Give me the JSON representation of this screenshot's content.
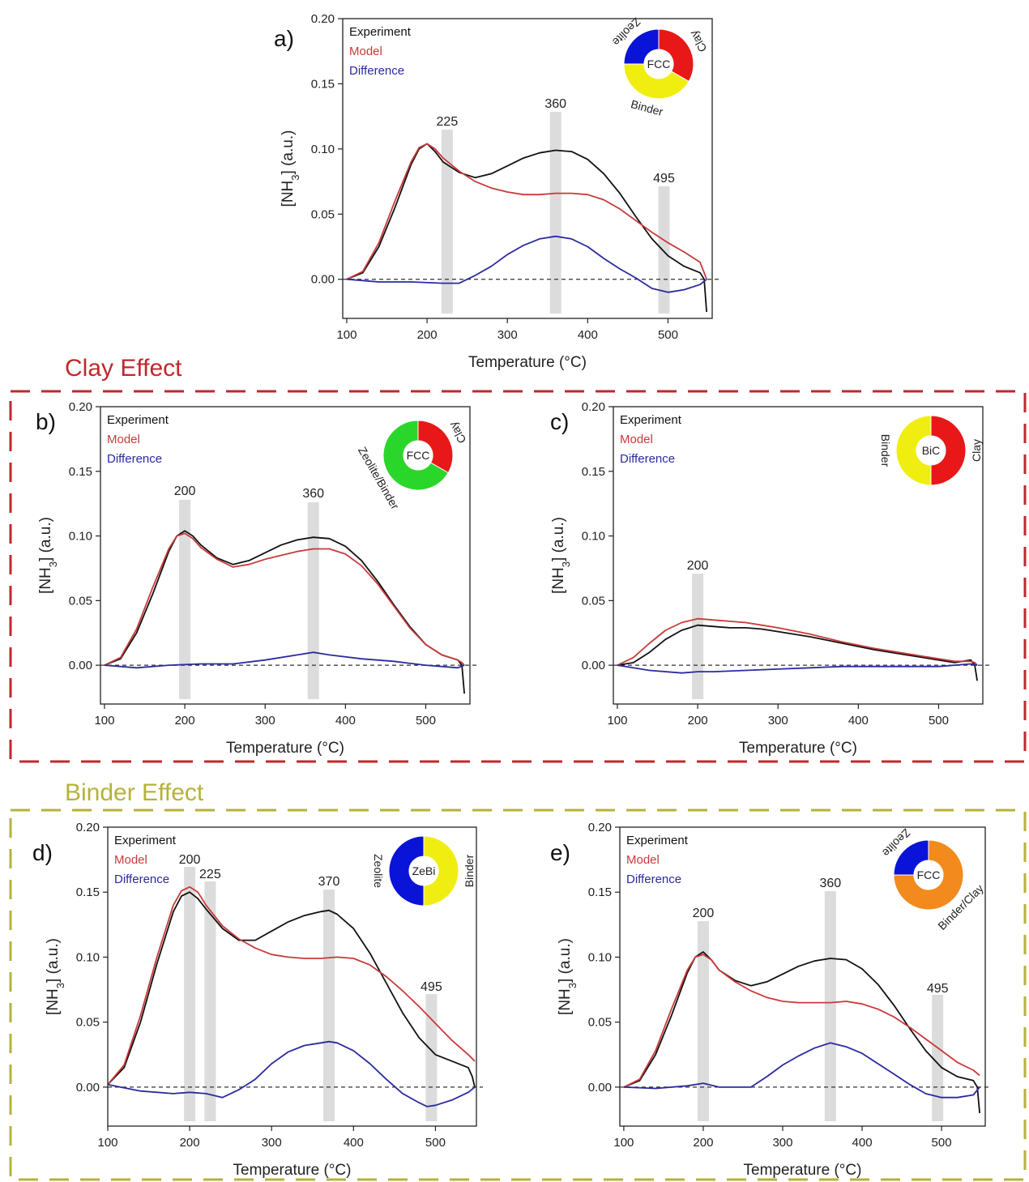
{
  "sections": [
    {
      "label": "Clay Effect",
      "color": "#c0282d"
    },
    {
      "label": "Binder Effect",
      "color": "#b5b23a"
    }
  ],
  "colors": {
    "experiment": "#111111",
    "model": "#c83a3a",
    "difference": "#2a2aa0",
    "peak_band": "#dcdcdc",
    "zeolite": "#0a14d8",
    "clay": "#e81818",
    "binder": "#f0ee10",
    "zeolite_binder": "#2bd62b",
    "binder_clay": "#f28a1e"
  },
  "chart_data": [
    {
      "panel": "a)",
      "type": "line",
      "xlabel": "Temperature (°C)",
      "ylabel": "[NH3] (a.u.)",
      "xlim": [
        95,
        555
      ],
      "ylim": [
        -0.03,
        0.2
      ],
      "xticks": [
        100,
        200,
        300,
        400,
        500
      ],
      "yticks": [
        "0.00",
        "0.05",
        "0.10",
        "0.15",
        "0.20"
      ],
      "legend": [
        "Experiment",
        "Model",
        "Difference"
      ],
      "legend_position": "top-left",
      "peaks": [
        "225",
        "360",
        "495"
      ],
      "donut": {
        "center": "FCC",
        "segments": [
          {
            "label": "Zeolite",
            "color": "zeolite",
            "from": 270,
            "to": 0
          },
          {
            "label": "Clay",
            "color": "clay",
            "from": 0,
            "to": 120
          },
          {
            "label": "Binder",
            "color": "binder",
            "from": 120,
            "to": 270
          }
        ]
      },
      "series": [
        {
          "name": "Experiment",
          "x": [
            100,
            120,
            140,
            160,
            180,
            190,
            200,
            210,
            220,
            240,
            260,
            280,
            300,
            320,
            340,
            360,
            380,
            400,
            420,
            440,
            460,
            480,
            500,
            520,
            540,
            545,
            548
          ],
          "y": [
            0,
            0.005,
            0.025,
            0.055,
            0.088,
            0.1,
            0.104,
            0.098,
            0.09,
            0.082,
            0.078,
            0.081,
            0.087,
            0.093,
            0.097,
            0.099,
            0.098,
            0.092,
            0.081,
            0.066,
            0.048,
            0.031,
            0.018,
            0.01,
            0.005,
            0,
            -0.025
          ]
        },
        {
          "name": "Model",
          "x": [
            100,
            120,
            140,
            160,
            180,
            190,
            200,
            210,
            220,
            240,
            260,
            280,
            300,
            320,
            340,
            360,
            380,
            400,
            420,
            440,
            460,
            480,
            500,
            520,
            540,
            545,
            548
          ],
          "y": [
            0,
            0.006,
            0.028,
            0.06,
            0.09,
            0.101,
            0.104,
            0.1,
            0.093,
            0.083,
            0.075,
            0.07,
            0.067,
            0.065,
            0.065,
            0.066,
            0.066,
            0.065,
            0.061,
            0.054,
            0.045,
            0.036,
            0.028,
            0.021,
            0.013,
            0.005,
            0
          ]
        },
        {
          "name": "Difference",
          "x": [
            100,
            140,
            180,
            220,
            240,
            260,
            280,
            300,
            320,
            340,
            360,
            380,
            400,
            420,
            440,
            460,
            480,
            500,
            520,
            540,
            548
          ],
          "y": [
            0,
            -0.002,
            -0.002,
            -0.003,
            -0.003,
            0.003,
            0.01,
            0.019,
            0.026,
            0.031,
            0.033,
            0.031,
            0.025,
            0.016,
            0.008,
            0.001,
            -0.007,
            -0.01,
            -0.008,
            -0.004,
            0
          ]
        }
      ]
    },
    {
      "panel": "b)",
      "type": "line",
      "xlabel": "Temperature (°C)",
      "ylabel": "[NH3] (a.u.)",
      "xlim": [
        95,
        555
      ],
      "ylim": [
        -0.03,
        0.2
      ],
      "xticks": [
        100,
        200,
        300,
        400,
        500
      ],
      "yticks": [
        "0.00",
        "0.05",
        "0.10",
        "0.15",
        "0.20"
      ],
      "legend": [
        "Experiment",
        "Model",
        "Difference"
      ],
      "legend_position": "top-left",
      "peaks": [
        "200",
        "360"
      ],
      "donut": {
        "center": "FCC",
        "segments": [
          {
            "label": "Zeolite/Binder",
            "color": "zeolite_binder",
            "from": 120,
            "to": 360
          },
          {
            "label": "Clay",
            "color": "clay",
            "from": 0,
            "to": 120
          }
        ]
      },
      "series": [
        {
          "name": "Experiment",
          "x": [
            100,
            120,
            140,
            160,
            180,
            190,
            200,
            210,
            220,
            240,
            260,
            280,
            300,
            320,
            340,
            360,
            380,
            400,
            420,
            440,
            460,
            480,
            500,
            520,
            540,
            545,
            548
          ],
          "y": [
            0,
            0.005,
            0.025,
            0.055,
            0.088,
            0.1,
            0.104,
            0.1,
            0.093,
            0.083,
            0.078,
            0.081,
            0.087,
            0.093,
            0.097,
            0.099,
            0.098,
            0.092,
            0.081,
            0.065,
            0.047,
            0.03,
            0.016,
            0.008,
            0.004,
            0,
            -0.022
          ]
        },
        {
          "name": "Model",
          "x": [
            100,
            120,
            140,
            160,
            180,
            190,
            200,
            210,
            220,
            240,
            260,
            280,
            300,
            320,
            340,
            360,
            380,
            400,
            420,
            440,
            460,
            480,
            500,
            520,
            540,
            545,
            548
          ],
          "y": [
            0,
            0.006,
            0.028,
            0.06,
            0.09,
            0.1,
            0.102,
            0.098,
            0.091,
            0.082,
            0.076,
            0.078,
            0.082,
            0.085,
            0.088,
            0.09,
            0.09,
            0.086,
            0.077,
            0.063,
            0.046,
            0.029,
            0.016,
            0.008,
            0.004,
            0.002,
            0
          ]
        },
        {
          "name": "Difference",
          "x": [
            100,
            140,
            180,
            220,
            260,
            300,
            340,
            360,
            380,
            420,
            460,
            500,
            540,
            548
          ],
          "y": [
            0,
            -0.002,
            0,
            0.001,
            0.001,
            0.004,
            0.008,
            0.01,
            0.008,
            0.005,
            0.003,
            0,
            -0.002,
            0
          ]
        }
      ]
    },
    {
      "panel": "c)",
      "type": "line",
      "xlabel": "Temperature (°C)",
      "ylabel": "[NH3] (a.u.)",
      "xlim": [
        95,
        555
      ],
      "ylim": [
        -0.03,
        0.2
      ],
      "xticks": [
        100,
        200,
        300,
        400,
        500
      ],
      "yticks": [
        "0.00",
        "0.05",
        "0.10",
        "0.15",
        "0.20"
      ],
      "legend": [
        "Experiment",
        "Model",
        "Difference"
      ],
      "legend_position": "top-left",
      "peaks": [
        "200"
      ],
      "donut": {
        "center": "BiC",
        "segments": [
          {
            "label": "Binder",
            "color": "binder",
            "from": 180,
            "to": 360
          },
          {
            "label": "Clay",
            "color": "clay",
            "from": 0,
            "to": 180
          }
        ]
      },
      "series": [
        {
          "name": "Experiment",
          "x": [
            100,
            120,
            140,
            160,
            180,
            200,
            220,
            240,
            260,
            280,
            300,
            340,
            380,
            420,
            460,
            500,
            520,
            540,
            545,
            548
          ],
          "y": [
            0,
            0.002,
            0.01,
            0.02,
            0.027,
            0.031,
            0.03,
            0.029,
            0.029,
            0.028,
            0.026,
            0.022,
            0.017,
            0.012,
            0.008,
            0.004,
            0.002,
            0.004,
            0,
            -0.012
          ]
        },
        {
          "name": "Model",
          "x": [
            100,
            120,
            140,
            160,
            180,
            200,
            220,
            240,
            260,
            280,
            300,
            340,
            380,
            420,
            460,
            500,
            520,
            540,
            545,
            548
          ],
          "y": [
            0,
            0.006,
            0.017,
            0.027,
            0.033,
            0.036,
            0.035,
            0.034,
            0.033,
            0.031,
            0.029,
            0.024,
            0.018,
            0.013,
            0.009,
            0.005,
            0.003,
            0.003,
            0.002,
            0
          ]
        },
        {
          "name": "Difference",
          "x": [
            100,
            140,
            180,
            200,
            220,
            260,
            300,
            340,
            380,
            420,
            460,
            500,
            540,
            548
          ],
          "y": [
            0,
            -0.004,
            -0.006,
            -0.005,
            -0.005,
            -0.004,
            -0.003,
            -0.002,
            -0.001,
            -0.001,
            -0.001,
            -0.001,
            0.001,
            0
          ]
        }
      ]
    },
    {
      "panel": "d)",
      "type": "line",
      "xlabel": "Temperature (°C)",
      "ylabel": "[NH3] (a.u.)",
      "xlim": [
        100,
        550
      ],
      "ylim": [
        -0.03,
        0.2
      ],
      "xticks": [
        100,
        200,
        300,
        400,
        500
      ],
      "yticks": [
        "0.00",
        "0.05",
        "0.10",
        "0.15",
        "0.20"
      ],
      "legend": [
        "Experiment",
        "Model",
        "Difference"
      ],
      "legend_position": "top-left",
      "peaks": [
        "200",
        "225",
        "370",
        "495"
      ],
      "donut": {
        "center": "ZeBi",
        "segments": [
          {
            "label": "Zeolite",
            "color": "zeolite",
            "from": 180,
            "to": 360
          },
          {
            "label": "Binder",
            "color": "binder",
            "from": 0,
            "to": 180
          }
        ]
      },
      "series": [
        {
          "name": "Experiment",
          "x": [
            100,
            120,
            140,
            160,
            180,
            190,
            200,
            210,
            220,
            240,
            260,
            280,
            300,
            320,
            340,
            360,
            370,
            380,
            400,
            420,
            440,
            460,
            480,
            500,
            520,
            540,
            545,
            548
          ],
          "y": [
            0.002,
            0.015,
            0.05,
            0.095,
            0.135,
            0.147,
            0.15,
            0.145,
            0.137,
            0.122,
            0.113,
            0.113,
            0.12,
            0.127,
            0.132,
            0.135,
            0.136,
            0.133,
            0.122,
            0.103,
            0.08,
            0.057,
            0.038,
            0.025,
            0.02,
            0.015,
            0.008,
            0
          ]
        },
        {
          "name": "Model",
          "x": [
            100,
            120,
            140,
            160,
            180,
            190,
            200,
            210,
            220,
            240,
            260,
            280,
            300,
            320,
            340,
            360,
            380,
            400,
            420,
            440,
            460,
            480,
            500,
            520,
            540,
            548
          ],
          "y": [
            0.002,
            0.017,
            0.055,
            0.1,
            0.14,
            0.151,
            0.154,
            0.15,
            0.14,
            0.124,
            0.114,
            0.107,
            0.102,
            0.1,
            0.099,
            0.099,
            0.1,
            0.099,
            0.094,
            0.085,
            0.074,
            0.062,
            0.049,
            0.036,
            0.025,
            0.02
          ]
        },
        {
          "name": "Difference",
          "x": [
            100,
            140,
            180,
            200,
            220,
            240,
            260,
            280,
            300,
            320,
            340,
            360,
            370,
            380,
            400,
            420,
            440,
            460,
            480,
            490,
            500,
            520,
            540,
            548
          ],
          "y": [
            0.002,
            -0.003,
            -0.005,
            -0.004,
            -0.005,
            -0.008,
            -0.002,
            0.006,
            0.018,
            0.027,
            0.032,
            0.034,
            0.035,
            0.034,
            0.028,
            0.018,
            0.006,
            -0.005,
            -0.012,
            -0.015,
            -0.014,
            -0.01,
            -0.004,
            0
          ]
        }
      ]
    },
    {
      "panel": "e)",
      "type": "line",
      "xlabel": "Temperature (°C)",
      "ylabel": "[NH3] (a.u.)",
      "xlim": [
        95,
        555
      ],
      "ylim": [
        -0.03,
        0.2
      ],
      "xticks": [
        100,
        200,
        300,
        400,
        500
      ],
      "yticks": [
        "0.00",
        "0.05",
        "0.10",
        "0.15",
        "0.20"
      ],
      "legend": [
        "Experiment",
        "Model",
        "Difference"
      ],
      "legend_position": "top-left",
      "peaks": [
        "200",
        "360",
        "495"
      ],
      "donut": {
        "center": "FCC",
        "segments": [
          {
            "label": "Zeolite",
            "color": "zeolite",
            "from": 270,
            "to": 360
          },
          {
            "label": "Binder/Clay",
            "color": "binder_clay",
            "from": 0,
            "to": 270
          }
        ]
      },
      "series": [
        {
          "name": "Experiment",
          "x": [
            100,
            120,
            140,
            160,
            180,
            190,
            200,
            210,
            220,
            240,
            260,
            280,
            300,
            320,
            340,
            360,
            380,
            400,
            420,
            440,
            460,
            480,
            500,
            520,
            540,
            545,
            548
          ],
          "y": [
            0,
            0.005,
            0.025,
            0.055,
            0.088,
            0.1,
            0.104,
            0.098,
            0.09,
            0.082,
            0.078,
            0.081,
            0.087,
            0.093,
            0.097,
            0.099,
            0.098,
            0.091,
            0.079,
            0.063,
            0.045,
            0.028,
            0.015,
            0.008,
            0.005,
            0,
            -0.02
          ]
        },
        {
          "name": "Model",
          "x": [
            100,
            120,
            140,
            160,
            180,
            190,
            200,
            210,
            220,
            240,
            260,
            280,
            300,
            320,
            340,
            360,
            380,
            400,
            420,
            440,
            460,
            480,
            500,
            520,
            540,
            548
          ],
          "y": [
            0,
            0.006,
            0.028,
            0.06,
            0.09,
            0.1,
            0.102,
            0.098,
            0.09,
            0.081,
            0.074,
            0.069,
            0.066,
            0.065,
            0.065,
            0.065,
            0.066,
            0.064,
            0.06,
            0.054,
            0.046,
            0.037,
            0.028,
            0.019,
            0.013,
            0.009
          ]
        },
        {
          "name": "Difference",
          "x": [
            100,
            140,
            180,
            200,
            220,
            240,
            260,
            280,
            300,
            320,
            340,
            360,
            380,
            400,
            420,
            440,
            460,
            480,
            500,
            520,
            540,
            548
          ],
          "y": [
            0,
            -0.001,
            0.001,
            0.003,
            0,
            0,
            0,
            0.008,
            0.017,
            0.024,
            0.03,
            0.034,
            0.031,
            0.026,
            0.018,
            0.01,
            0.002,
            -0.005,
            -0.008,
            -0.008,
            -0.006,
            0
          ]
        }
      ]
    }
  ]
}
